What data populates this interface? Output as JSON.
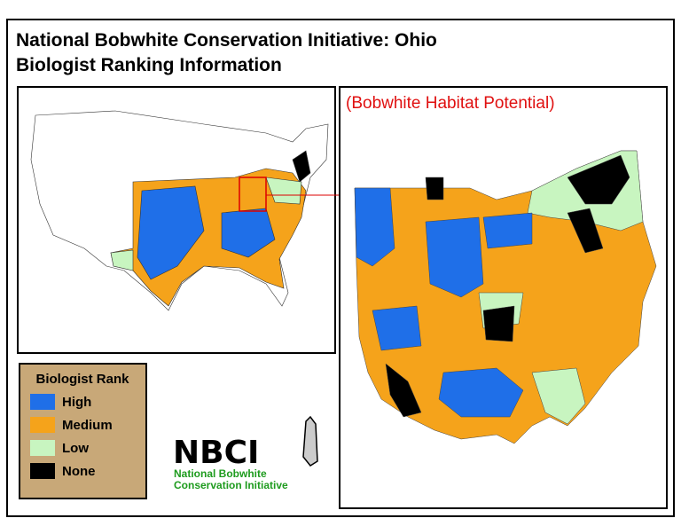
{
  "header": {
    "title_line1": "National Bobwhite Conservation Initiative: Ohio",
    "title_line2": "Biologist Ranking Information"
  },
  "map": {
    "subtitle": "(Bobwhite Habitat Potential)"
  },
  "legend": {
    "title": "Biologist Rank",
    "items": [
      {
        "label": "High",
        "color": "#1f6fe8"
      },
      {
        "label": "Medium",
        "color": "#f5a31b"
      },
      {
        "label": "Low",
        "color": "#c8f5c0"
      },
      {
        "label": "None",
        "color": "#000000"
      }
    ]
  },
  "logo": {
    "acronym": "NBCI",
    "line1": "National Bobwhite",
    "line2": "Conservation Initiative"
  }
}
